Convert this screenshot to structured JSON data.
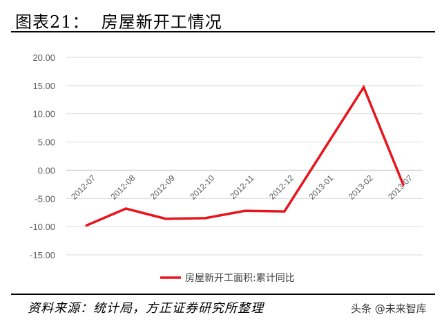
{
  "figure": {
    "title": "图表21：  房屋新开工情况",
    "source": "资料来源：统计局，方正证券研究所整理",
    "watermark": "头条 @未来智库"
  },
  "chart_data": {
    "type": "line",
    "title": "",
    "xlabel": "",
    "ylabel": "",
    "categories": [
      "2012-07",
      "2012-08",
      "2012-09",
      "2012-10",
      "2012-11",
      "2012-12",
      "2013-01",
      "2013-02",
      "2013-07"
    ],
    "series": [
      {
        "name": "房屋新开工面积:累计同比",
        "values": [
          -9.8,
          -6.8,
          -8.6,
          -8.5,
          -7.2,
          -7.3,
          3.7,
          14.7,
          -2.6
        ],
        "color": "#e8141b"
      }
    ],
    "yticks": [
      "20.00",
      "15.00",
      "10.00",
      "5.00",
      "0.00",
      "-5.00",
      "-10.00",
      "-15.00"
    ],
    "ylim": [
      -15,
      20
    ],
    "grid": true,
    "legend_position": "bottom"
  }
}
